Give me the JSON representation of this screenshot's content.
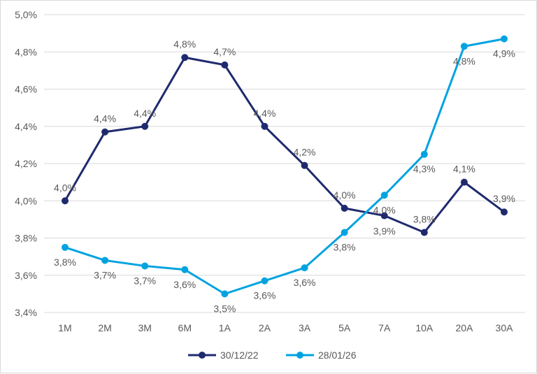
{
  "chart_data": {
    "type": "line",
    "title": "",
    "xlabel": "",
    "ylabel": "",
    "categories": [
      "1M",
      "2M",
      "3M",
      "6M",
      "1A",
      "2A",
      "3A",
      "5A",
      "7A",
      "10A",
      "20A",
      "30A"
    ],
    "ylim": [
      3.4,
      5.0
    ],
    "yticks": [
      3.4,
      3.6,
      3.8,
      4.0,
      4.2,
      4.4,
      4.6,
      4.8,
      5.0
    ],
    "ytick_labels": [
      "3,4%",
      "3,6%",
      "3,8%",
      "4,0%",
      "4,2%",
      "4,4%",
      "4,6%",
      "4,8%",
      "5,0%"
    ],
    "grid": "horizontal",
    "legend_position": "bottom",
    "series": [
      {
        "name": "30/12/22",
        "color": "#1f2a6e",
        "label_position": "above",
        "values": [
          4.0,
          4.37,
          4.4,
          4.77,
          4.73,
          4.4,
          4.19,
          3.96,
          3.92,
          3.83,
          4.1,
          3.94
        ],
        "labels": [
          "4,0%",
          "4,4%",
          "4,4%",
          "4,8%",
          "4,7%",
          "4,4%",
          "4,2%",
          "4,0%",
          "3,9%",
          "3,8%",
          "4,1%",
          "3,9%"
        ]
      },
      {
        "name": "28/01/26",
        "color": "#00a3e0",
        "label_position": "below",
        "values": [
          3.75,
          3.68,
          3.65,
          3.63,
          3.5,
          3.57,
          3.64,
          3.83,
          4.03,
          4.25,
          4.83,
          4.87
        ],
        "labels": [
          "3,8%",
          "3,7%",
          "3,7%",
          "3,6%",
          "3,5%",
          "3,6%",
          "3,6%",
          "3,8%",
          "4,0%",
          "4,3%",
          "4,8%",
          "4,9%"
        ]
      }
    ]
  }
}
